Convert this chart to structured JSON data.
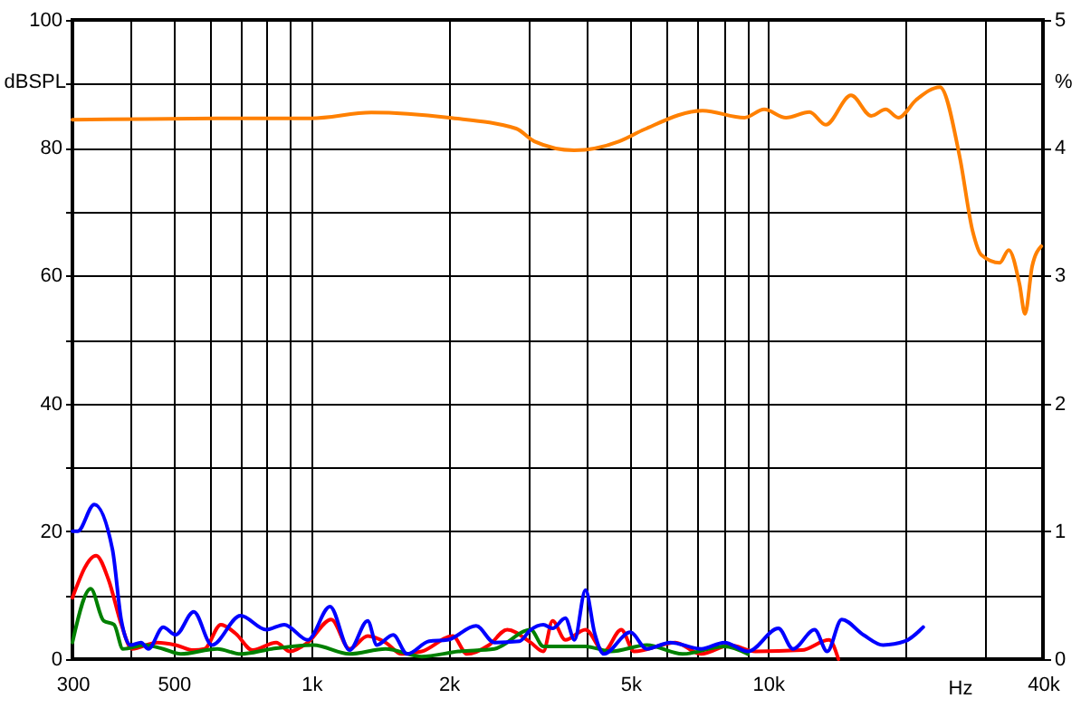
{
  "chart_data": {
    "type": "line",
    "xlabel": "Hz",
    "ylabel": "dBSPL",
    "y2label": "%",
    "log": "x",
    "grid": true,
    "line_style": "solid",
    "marker": "none",
    "xlim": [
      300,
      40000
    ],
    "ylim": [
      0,
      100
    ],
    "y2lim": [
      0,
      5
    ],
    "xticks": [
      300,
      {
        "value": 400,
        "label": null
      },
      500,
      {
        "value": 600,
        "label": null
      },
      {
        "value": 700,
        "label": null
      },
      {
        "value": 800,
        "label": null
      },
      {
        "value": 900,
        "label": null
      },
      {
        "value": 1000,
        "label": "1k"
      },
      {
        "value": 2000,
        "label": "2k"
      },
      {
        "value": 3000,
        "label": null
      },
      {
        "value": 4000,
        "label": null
      },
      {
        "value": 5000,
        "label": "5k"
      },
      {
        "value": 6000,
        "label": null
      },
      {
        "value": 7000,
        "label": null
      },
      {
        "value": 8000,
        "label": null
      },
      {
        "value": 9000,
        "label": null
      },
      {
        "value": 10000,
        "label": "10k"
      },
      {
        "value": 20000,
        "label": null
      },
      {
        "value": 30000,
        "label": null
      },
      {
        "value": 40000,
        "label": "40k"
      }
    ],
    "yticks": [
      0,
      {
        "value": 10,
        "label": null
      },
      20,
      {
        "value": 30,
        "label": null
      },
      40,
      {
        "value": 50,
        "label": null
      },
      60,
      {
        "value": 70,
        "label": null
      },
      80,
      {
        "value": 90,
        "label": null
      },
      100
    ],
    "y2ticks": [
      0,
      1,
      2,
      3,
      4,
      5
    ],
    "series": [
      {
        "color": "#ff8000",
        "x": [
          300,
          432,
          623,
          1000,
          1353,
          2004,
          2809,
          3078,
          3763,
          4725,
          5370,
          7190,
          8880,
          9810,
          10950,
          12330,
          13380,
          15200,
          16830,
          18100,
          19290,
          21120,
          23790,
          26300,
          28050,
          29340,
          32160,
          33660,
          35550,
          36540,
          37890,
          39660
        ],
        "values": [
          84.4,
          84.5,
          84.6,
          84.6,
          85.5,
          84.7,
          83,
          81,
          79.6,
          81,
          82.9,
          85.8,
          84.7,
          86,
          84.7,
          85.6,
          83.6,
          88.2,
          85,
          86,
          84.7,
          87.5,
          89.5,
          78.5,
          67,
          63.2,
          62,
          64,
          58.6,
          54,
          61.5,
          64.6
        ]
      },
      {
        "color": "#ff0000",
        "axis": "y2",
        "x": [
          300,
          338,
          360,
          384,
          405,
          460,
          505,
          553,
          584,
          634,
          683,
          744,
          838,
          898,
          983,
          1106,
          1213,
          1329,
          1455,
          1577,
          1745,
          2041,
          2194,
          2450,
          2686,
          3022,
          3222,
          3375,
          3600,
          3985,
          4372,
          4773,
          5090,
          6270,
          7140,
          8260,
          9380,
          11860,
          13610,
          14260
        ],
        "values": [
          0.48,
          0.81,
          0.62,
          0.27,
          0.08,
          0.13,
          0.11,
          0.07,
          0.08,
          0.27,
          0.2,
          0.07,
          0.13,
          0.06,
          0.13,
          0.31,
          0.08,
          0.18,
          0.13,
          0.04,
          0.06,
          0.18,
          0.04,
          0.11,
          0.23,
          0.13,
          0.06,
          0.3,
          0.15,
          0.23,
          0.06,
          0.23,
          0.06,
          0.13,
          0.04,
          0.11,
          0.06,
          0.07,
          0.15,
          0
        ]
      },
      {
        "color": "#008000",
        "axis": "y2",
        "x": [
          300,
          329,
          351,
          370,
          387,
          432,
          474,
          518,
          623,
          700,
          819,
          1011,
          1213,
          1455,
          1745,
          2098,
          2517,
          3022,
          3222,
          3985,
          4530,
          5430,
          6500,
          8030,
          9040
        ],
        "values": [
          0.13,
          0.55,
          0.3,
          0.27,
          0.08,
          0.11,
          0.08,
          0.04,
          0.08,
          0.04,
          0.08,
          0.11,
          0.04,
          0.08,
          0.02,
          0.06,
          0.08,
          0.23,
          0.1,
          0.1,
          0.06,
          0.11,
          0.04,
          0.1,
          0.04
        ]
      },
      {
        "color": "#0000ff",
        "axis": "y2",
        "x": [
          300,
          308,
          335,
          367,
          384,
          402,
          424,
          440,
          474,
          505,
          553,
          606,
          700,
          797,
          873,
          983,
          1099,
          1213,
          1329,
          1392,
          1511,
          1623,
          1812,
          1985,
          2296,
          2517,
          2858,
          3022,
          3222,
          3375,
          3600,
          3770,
          3985,
          4175,
          4372,
          4995,
          5430,
          6110,
          7140,
          8030,
          9040,
          10540,
          11340,
          12650,
          13480,
          14500,
          16180,
          17870,
          19960,
          21870
        ],
        "values": [
          1.0,
          1.0,
          1.21,
          0.86,
          0.3,
          0.11,
          0.13,
          0.08,
          0.25,
          0.19,
          0.37,
          0.11,
          0.34,
          0.23,
          0.27,
          0.15,
          0.41,
          0.07,
          0.3,
          0.11,
          0.19,
          0.04,
          0.14,
          0.15,
          0.26,
          0.13,
          0.14,
          0.23,
          0.27,
          0.24,
          0.32,
          0.15,
          0.54,
          0.2,
          0.04,
          0.21,
          0.08,
          0.13,
          0.08,
          0.13,
          0.06,
          0.24,
          0.08,
          0.23,
          0.06,
          0.31,
          0.19,
          0.11,
          0.14,
          0.25
        ]
      }
    ]
  }
}
